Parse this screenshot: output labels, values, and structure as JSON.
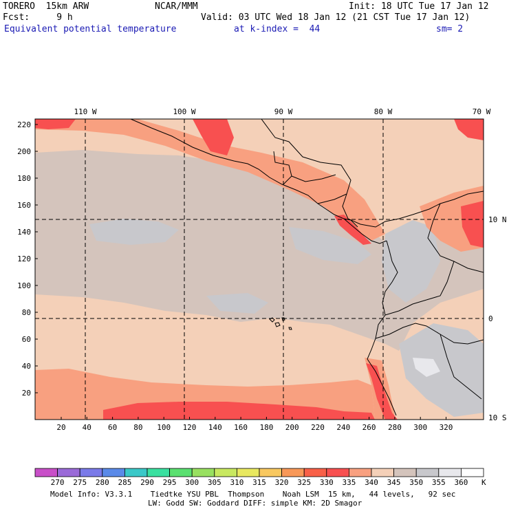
{
  "header": {
    "title": "TORERO  15km ARW",
    "center": "NCAR/MMM",
    "init": "Init: 18 UTC Tue 17 Jan 12",
    "fcst": "Fcst:     9 h",
    "valid": "Valid: 03 UTC Wed 18 Jan 12 (21 CST Tue 17 Jan 12)",
    "field": "Equivalent potential temperature",
    "level": "at k-index =  44",
    "smooth": "sm= 2"
  },
  "axes": {
    "top_lon": [
      "110 W",
      "100 W",
      "90 W",
      "80 W",
      "70 W"
    ],
    "right_lat": [
      "10 N",
      "0",
      "10 S"
    ],
    "left_y": [
      "220",
      "200",
      "180",
      "160",
      "140",
      "120",
      "100",
      "80",
      "60",
      "40",
      "20"
    ],
    "bottom_x": [
      "20",
      "40",
      "60",
      "80",
      "100",
      "120",
      "140",
      "160",
      "180",
      "200",
      "220",
      "240",
      "260",
      "280",
      "300",
      "320"
    ]
  },
  "colorbar": {
    "labels": [
      "270",
      "275",
      "280",
      "285",
      "290",
      "295",
      "300",
      "305",
      "310",
      "315",
      "320",
      "325",
      "330",
      "335",
      "340",
      "345",
      "350",
      "355",
      "360"
    ],
    "unit": "K",
    "colors": [
      "#c84fc8",
      "#9a6ad8",
      "#7a7ae8",
      "#5a8ae8",
      "#3ac8c8",
      "#3ae0a0",
      "#5ae070",
      "#98e060",
      "#c8e860",
      "#e8e860",
      "#f8c860",
      "#f89858",
      "#f86048",
      "#f85050",
      "#f8a080",
      "#f4d0b8",
      "#d4c4bc",
      "#c8c8cc",
      "#e8e8ec",
      "#ffffff"
    ]
  },
  "footer": {
    "line1": "Model Info: V3.3.1    Tiedtke YSU PBL  Thompson    Noah LSM  15 km,   44 levels,   92 sec",
    "line2": "LW: Godd SW: Goddard DIFF: simple KM: 2D Smagor"
  }
}
